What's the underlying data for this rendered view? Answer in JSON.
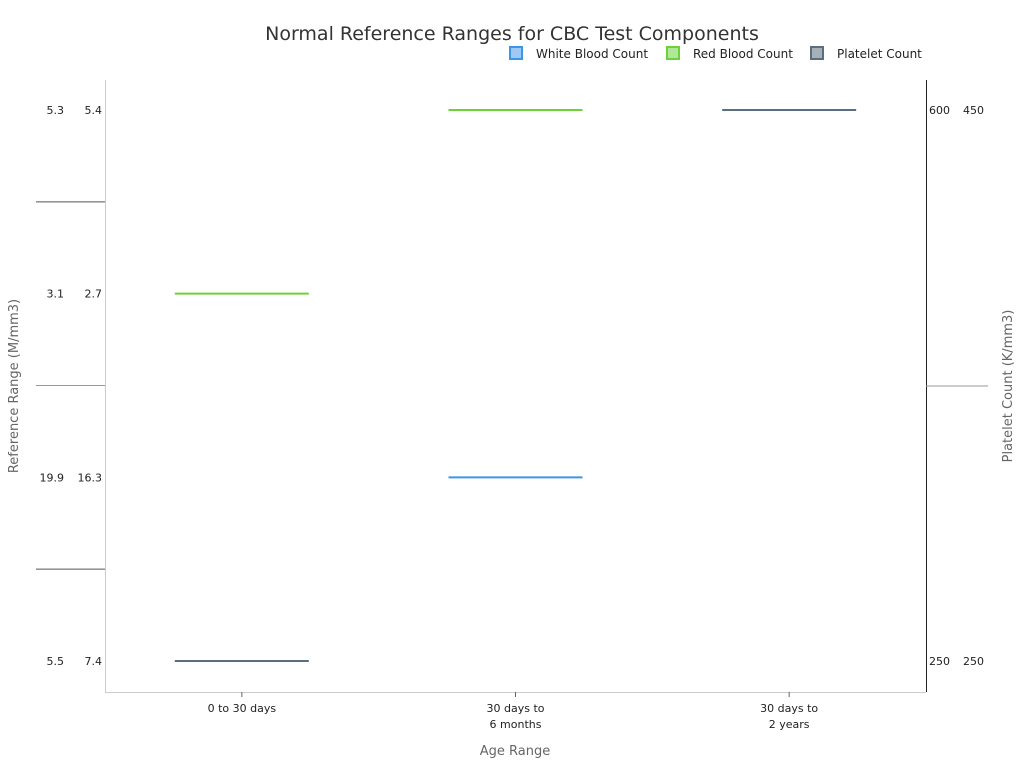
{
  "chart_data": {
    "type": "line",
    "title": "Normal Reference Ranges for CBC Test Components",
    "xlabel": "Age Range",
    "ylabel": "Reference Range (M/mm3)",
    "y2label": "Platelet Count (K/mm3)",
    "categories": [
      [
        "0 to 30 days"
      ],
      [
        "30 days to",
        "6 months"
      ],
      [
        "30 days to",
        "2 years"
      ]
    ],
    "y_tick_labels": [
      [
        "5.3",
        "5.4"
      ],
      [
        "3.1",
        "2.7"
      ],
      [
        "19.9",
        "16.3"
      ],
      [
        "5.5",
        "7.4"
      ]
    ],
    "y2_tick_labels": [
      [
        "600",
        "450"
      ],
      null,
      null,
      [
        "250",
        "250"
      ]
    ],
    "legend_position": "top-right",
    "series": [
      {
        "name": "White Blood Count",
        "color": "#3b97e6",
        "fill": "#9ec8f5",
        "points": [
          {
            "category": 1,
            "row": 2
          }
        ]
      },
      {
        "name": "Red Blood Count",
        "color": "#6fd13a",
        "fill": "#b0e89a",
        "points": [
          {
            "category": 0,
            "row": 1
          },
          {
            "category": 1,
            "row": 0
          }
        ]
      },
      {
        "name": "Platelet Count",
        "color": "#5a6e80",
        "fill": "#a5b0b8",
        "points": [
          {
            "category": 0,
            "row": 3
          },
          {
            "category": 2,
            "row": 0
          }
        ]
      }
    ]
  }
}
